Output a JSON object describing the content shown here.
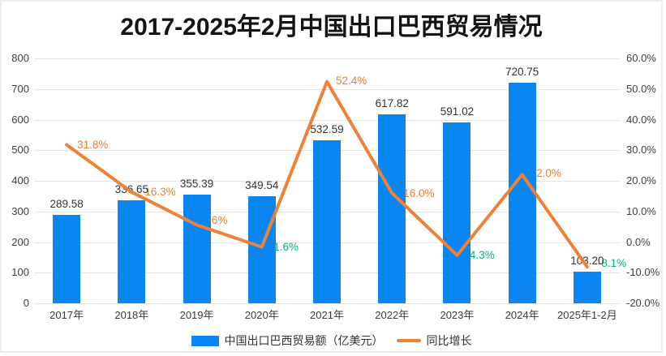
{
  "title": "2017-2025年2月中国出口巴西贸易情况",
  "chart_data": {
    "type": "bar",
    "subtype": "bar-line-combo",
    "title": "2017-2025年2月中国出口巴西贸易情况",
    "categories": [
      "2017年",
      "2018年",
      "2019年",
      "2020年",
      "2021年",
      "2022年",
      "2023年",
      "2024年",
      "2025年1-2月"
    ],
    "series": [
      {
        "name": "中国出口巴西贸易额（亿美元）",
        "type": "bar",
        "axis": "left",
        "color": "#0986f2",
        "values": [
          289.58,
          336.65,
          355.39,
          349.54,
          532.59,
          617.82,
          591.02,
          720.75,
          103.2
        ],
        "value_labels": [
          "289.58",
          "336.65",
          "355.39",
          "349.54",
          "532.59",
          "617.82",
          "591.02",
          "720.75",
          "103.20"
        ]
      },
      {
        "name": "同比增长",
        "type": "line",
        "axis": "right",
        "color": "#ee8136",
        "values": [
          31.8,
          16.3,
          5.6,
          -1.6,
          52.4,
          16.0,
          -4.3,
          22.0,
          -8.1
        ],
        "value_labels": [
          "31.8%",
          "16.3%",
          "5.6%",
          "-1.6%",
          "52.4%",
          "16.0%",
          "-4.3%",
          "22.0%",
          "-8.1%"
        ],
        "positive_label_color": "#ed7d31",
        "negative_label_color": "#00b578",
        "label_offsets": [
          [
            13,
            1
          ],
          [
            16,
            0
          ],
          [
            7,
            -5
          ],
          [
            10,
            0
          ],
          [
            11,
            -1
          ],
          [
            14,
            1
          ],
          [
            11,
            0
          ],
          [
            10,
            -1
          ],
          [
            13,
            -4
          ]
        ]
      }
    ],
    "left_axis": {
      "min": 0,
      "max": 800,
      "step": 100,
      "ticks": [
        "800",
        "700",
        "600",
        "500",
        "400",
        "300",
        "200",
        "100",
        "0"
      ]
    },
    "right_axis": {
      "min": -20,
      "max": 60,
      "step": 10,
      "ticks": [
        "60.0%",
        "50.0%",
        "40.0%",
        "30.0%",
        "20.0%",
        "10.0%",
        "0.0%",
        "-10.0%",
        "-20.0%"
      ]
    },
    "grid": true,
    "legend_position": "bottom"
  },
  "legend": {
    "items": [
      {
        "label": "中国出口巴西贸易额（亿美元）",
        "swatch": "bar",
        "color": "#0986f2"
      },
      {
        "label": "同比增长",
        "swatch": "line",
        "color": "#ee8136"
      }
    ]
  }
}
